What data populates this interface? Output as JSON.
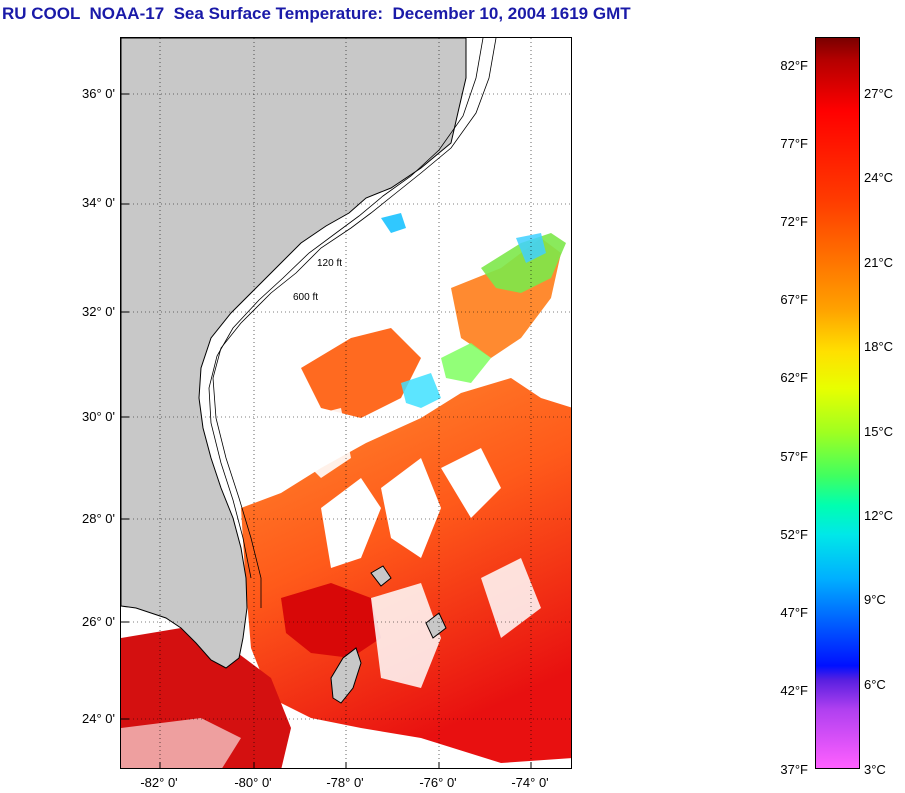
{
  "title": "RU COOL  NOAA-17  Sea Surface Temperature:  December 10, 2004 1619 GMT",
  "map": {
    "lat_labels": [
      "36° 0'",
      "34° 0'",
      "32° 0'",
      "30° 0'",
      "28° 0'",
      "26° 0'",
      "24° 0'"
    ],
    "lon_labels": [
      "-82° 0'",
      "-80° 0'",
      "-78° 0'",
      "-76° 0'",
      "-74° 0'"
    ],
    "lat_range": [
      23,
      37
    ],
    "lon_range": [
      -83,
      -73
    ],
    "gridlines": "dotted",
    "contours": [
      "120 ft",
      "600 ft"
    ],
    "land_color": "#c8c8c8",
    "cloud_color": "#ffffff"
  },
  "colorbar": {
    "fahrenheit_labels": [
      "82°F",
      "77°F",
      "72°F",
      "67°F",
      "62°F",
      "57°F",
      "52°F",
      "47°F",
      "42°F",
      "37°F"
    ],
    "celsius_labels": [
      "27°C",
      "24°C",
      "21°C",
      "18°C",
      "15°C",
      "12°C",
      "9°C",
      "6°C",
      "3°C"
    ]
  }
}
